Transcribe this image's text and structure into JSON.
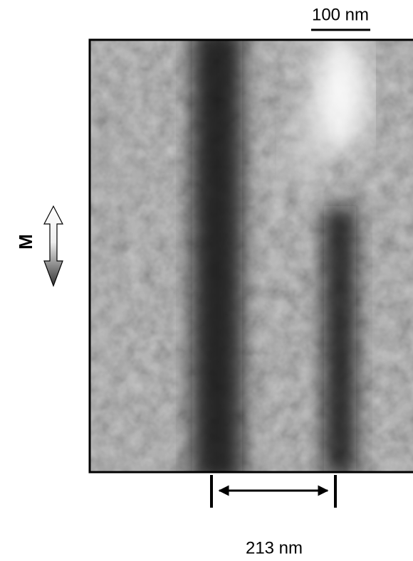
{
  "scale_bar": {
    "label": "100 nm"
  },
  "direction": {
    "label": "M"
  },
  "measurement": {
    "label": "213 nm"
  }
}
